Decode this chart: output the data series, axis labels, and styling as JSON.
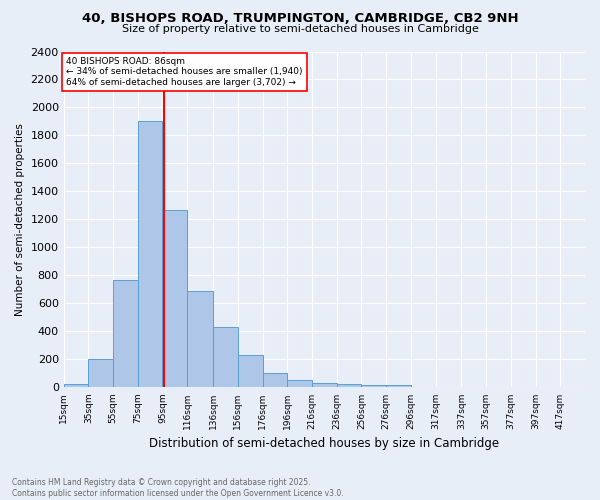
{
  "title1": "40, BISHOPS ROAD, TRUMPINGTON, CAMBRIDGE, CB2 9NH",
  "title2": "Size of property relative to semi-detached houses in Cambridge",
  "xlabel": "Distribution of semi-detached houses by size in Cambridge",
  "ylabel": "Number of semi-detached properties",
  "footnote1": "Contains HM Land Registry data © Crown copyright and database right 2025.",
  "footnote2": "Contains public sector information licensed under the Open Government Licence v3.0.",
  "bar_labels": [
    "15sqm",
    "35sqm",
    "55sqm",
    "75sqm",
    "95sqm",
    "116sqm",
    "136sqm",
    "156sqm",
    "176sqm",
    "196sqm",
    "216sqm",
    "236sqm",
    "256sqm",
    "276sqm",
    "296sqm",
    "317sqm",
    "337sqm",
    "357sqm",
    "377sqm",
    "397sqm",
    "417sqm"
  ],
  "bar_values": [
    25,
    200,
    770,
    1900,
    1270,
    690,
    435,
    230,
    100,
    55,
    35,
    25,
    20,
    15,
    0,
    0,
    0,
    0,
    0,
    0,
    0
  ],
  "bar_color": "#aec6e8",
  "bar_edge_color": "#5a9fd4",
  "red_line_x": 86,
  "annotation_box_text": "40 BISHOPS ROAD: 86sqm\n← 34% of semi-detached houses are smaller (1,940)\n64% of semi-detached houses are larger (3,702) →",
  "ylim": [
    0,
    2400
  ],
  "yticks": [
    0,
    200,
    400,
    600,
    800,
    1000,
    1200,
    1400,
    1600,
    1800,
    2000,
    2200,
    2400
  ],
  "bg_color": "#e8eef8",
  "plot_bg_color": "#e8eef8",
  "grid_color": "#ffffff",
  "bin_edges": [
    5,
    25,
    45,
    65,
    85,
    105,
    126,
    146,
    166,
    186,
    206,
    226,
    246,
    266,
    286,
    306,
    327,
    347,
    367,
    387,
    407,
    427
  ]
}
